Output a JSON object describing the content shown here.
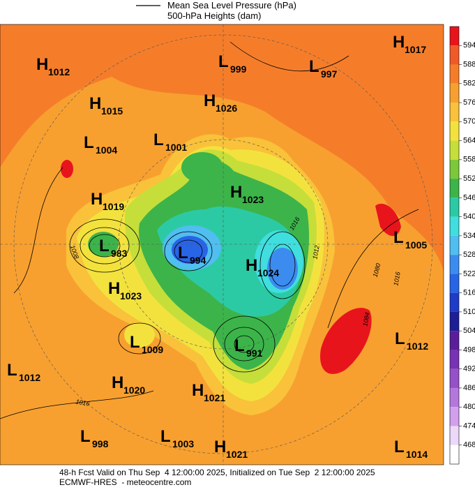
{
  "legend": {
    "line_label": "Mean Sea Level Pressure (hPa)",
    "shading_label": "500-hPa Heights (dam)"
  },
  "pressure_centers": [
    {
      "letter": "H",
      "value": "1012"
    },
    {
      "letter": "H",
      "value": "1015"
    },
    {
      "letter": "L",
      "value": "1004"
    },
    {
      "letter": "L",
      "value": "1001"
    },
    {
      "letter": "H",
      "value": "1026"
    },
    {
      "letter": "L",
      "value": "999"
    },
    {
      "letter": "L",
      "value": "997"
    },
    {
      "letter": "H",
      "value": "1017"
    },
    {
      "letter": "H",
      "value": "1019"
    },
    {
      "letter": "H",
      "value": "1023"
    },
    {
      "letter": "L",
      "value": "983"
    },
    {
      "letter": "L",
      "value": "994"
    },
    {
      "letter": "H",
      "value": "1024"
    },
    {
      "letter": "L",
      "value": "1005"
    },
    {
      "letter": "H",
      "value": "1023"
    },
    {
      "letter": "L",
      "value": "1009"
    },
    {
      "letter": "L",
      "value": "991"
    },
    {
      "letter": "L",
      "value": "1012"
    },
    {
      "letter": "L",
      "value": "1012"
    },
    {
      "letter": "H",
      "value": "1020"
    },
    {
      "letter": "H",
      "value": "1021"
    },
    {
      "letter": "L",
      "value": "998"
    },
    {
      "letter": "L",
      "value": "1003"
    },
    {
      "letter": "H",
      "value": "1021"
    },
    {
      "letter": "L",
      "value": "1014"
    }
  ],
  "isobar_labels": [
    "1008",
    "1016",
    "1012",
    "1016",
    "1080",
    "1084",
    "1016"
  ],
  "colorbar": [
    {
      "value": 594,
      "color": "#e8141c"
    },
    {
      "value": 588,
      "color": "#f05a28"
    },
    {
      "value": 582,
      "color": "#f57d2a"
    },
    {
      "value": 576,
      "color": "#f7a030"
    },
    {
      "value": 570,
      "color": "#f9c23a"
    },
    {
      "value": 564,
      "color": "#f3e23e"
    },
    {
      "value": 558,
      "color": "#c6de3a"
    },
    {
      "value": 552,
      "color": "#7cc83a"
    },
    {
      "value": 546,
      "color": "#3cb44a"
    },
    {
      "value": 540,
      "color": "#2ccaa4"
    },
    {
      "value": 534,
      "color": "#40dede"
    },
    {
      "value": 528,
      "color": "#50bef0"
    },
    {
      "value": 522,
      "color": "#3c8cf0"
    },
    {
      "value": 516,
      "color": "#2864e6"
    },
    {
      "value": 510,
      "color": "#1e3cc8"
    },
    {
      "value": 504,
      "color": "#1e1e96"
    },
    {
      "value": 498,
      "color": "#5a1e9a"
    },
    {
      "value": 492,
      "color": "#7832b4"
    },
    {
      "value": 486,
      "color": "#9650c8"
    },
    {
      "value": 480,
      "color": "#b478dc"
    },
    {
      "value": 474,
      "color": "#d2a0ec"
    },
    {
      "value": 468,
      "color": "#ecd8f8"
    }
  ],
  "footer": {
    "line1": "48-h Fcst Valid on Thu Sep  4 12:00:00 2025, Initialized on Tue Sep  2 12:00:00 2025",
    "line2": "ECMWF-HRES  - meteocentre.com"
  }
}
